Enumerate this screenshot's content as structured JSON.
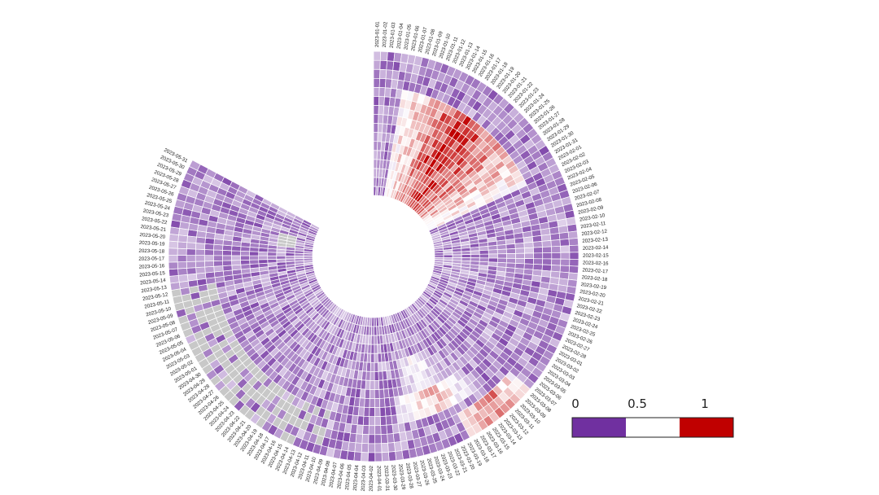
{
  "chart_data": {
    "type": "heatmap",
    "layout": "circular",
    "start_date": "2023-01-01",
    "end_date": "2023-05-31",
    "title": "",
    "date_labels": [
      "2023-01-01",
      "2023-01-02",
      "2023-01-03",
      "2023-01-04",
      "2023-01-05",
      "2023-01-06",
      "2023-01-07",
      "2023-01-08",
      "2023-01-09",
      "2023-01-10",
      "2023-01-11",
      "2023-01-12",
      "2023-01-13",
      "2023-01-14",
      "2023-01-15",
      "2023-01-16",
      "2023-01-17",
      "2023-01-18",
      "2023-01-19",
      "2023-01-20",
      "2023-01-21",
      "2023-01-22",
      "2023-01-23",
      "2023-01-24",
      "2023-01-25",
      "2023-01-26",
      "2023-01-27",
      "2023-01-28",
      "2023-01-29",
      "2023-01-30",
      "2023-01-31",
      "2023-02-01",
      "2023-02-02",
      "2023-02-03",
      "2023-02-04",
      "2023-02-05",
      "2023-02-06",
      "2023-02-07",
      "2023-02-08",
      "2023-02-09",
      "2023-02-10",
      "2023-02-11",
      "2023-02-12",
      "2023-02-13",
      "2023-02-14",
      "2023-02-15",
      "2023-02-16",
      "2023-02-17",
      "2023-02-18",
      "2023-02-19",
      "2023-02-20",
      "2023-02-21",
      "2023-02-22",
      "2023-02-23",
      "2023-02-24",
      "2023-02-25",
      "2023-02-26",
      "2023-02-27",
      "2023-02-28",
      "2023-03-01",
      "2023-03-02",
      "2023-03-03",
      "2023-03-04",
      "2023-03-05",
      "2023-03-06",
      "2023-03-07",
      "2023-03-08",
      "2023-03-09",
      "2023-03-10",
      "2023-03-11",
      "2023-03-12",
      "2023-03-13",
      "2023-03-14",
      "2023-03-15",
      "2023-03-16",
      "2023-03-17",
      "2023-03-18",
      "2023-03-19",
      "2023-03-20",
      "2023-03-21",
      "2023-03-22",
      "2023-03-23",
      "2023-03-24",
      "2023-03-25",
      "2023-03-26",
      "2023-03-27",
      "2023-03-28",
      "2023-03-29",
      "2023-03-30",
      "2023-03-31",
      "2023-04-01",
      "2023-04-02",
      "2023-04-03",
      "2023-04-04",
      "2023-04-05",
      "2023-04-06",
      "2023-04-07",
      "2023-04-08",
      "2023-04-09",
      "2023-04-10",
      "2023-04-11",
      "2023-04-12",
      "2023-04-13",
      "2023-04-14",
      "2023-04-15",
      "2023-04-16",
      "2023-04-17",
      "2023-04-18",
      "2023-04-19",
      "2023-04-20",
      "2023-04-21",
      "2023-04-22",
      "2023-04-23",
      "2023-04-24",
      "2023-04-25",
      "2023-04-26",
      "2023-04-27",
      "2023-04-28",
      "2023-04-29",
      "2023-04-30",
      "2023-05-01",
      "2023-05-02",
      "2023-05-03",
      "2023-05-04",
      "2023-05-05",
      "2023-05-06",
      "2023-05-07",
      "2023-05-08",
      "2023-05-09",
      "2023-05-10",
      "2023-05-11",
      "2023-05-12",
      "2023-05-13",
      "2023-05-14",
      "2023-05-15",
      "2023-05-16",
      "2023-05-17",
      "2023-05-18",
      "2023-05-19",
      "2023-05-20",
      "2023-05-21",
      "2023-05-22",
      "2023-05-23",
      "2023-05-24",
      "2023-05-25",
      "2023-05-26",
      "2023-05-27",
      "2023-05-28",
      "2023-05-29",
      "2023-05-30",
      "2023-05-31"
    ],
    "series_count": 16,
    "value_range": [
      0,
      1
    ],
    "missing_value_color": "#c8c8c8",
    "hotspots": [
      {
        "series_from": 0,
        "series_to": 11,
        "day_from": 5,
        "day_to": 32,
        "peak": 0.95
      },
      {
        "series_from": 3,
        "series_to": 10,
        "day_from": 8,
        "day_to": 24,
        "peak": 1.0
      },
      {
        "series_from": 6,
        "series_to": 11,
        "day_from": 14,
        "day_to": 30,
        "peak": 0.8
      },
      {
        "series_from": 13,
        "series_to": 15,
        "day_from": 66,
        "day_to": 76,
        "peak": 0.85
      },
      {
        "series_from": 9,
        "series_to": 11,
        "day_from": 72,
        "day_to": 86,
        "peak": 0.7
      },
      {
        "series_from": 5,
        "series_to": 8,
        "day_from": 76,
        "day_to": 84,
        "peak": 0.55
      }
    ],
    "missing_ranges": [
      {
        "series_from": 11,
        "series_to": 15,
        "day_from": 99,
        "day_to": 131
      },
      {
        "series_from": 2,
        "series_to": 3,
        "day_from": 140,
        "day_to": 143
      }
    ],
    "colorbar": {
      "ticks": [
        0,
        0.5,
        1
      ],
      "tick_labels": [
        "0",
        "0.5",
        "1"
      ],
      "colors": [
        "#7030a0",
        "#ffffff",
        "#c00000"
      ]
    }
  }
}
